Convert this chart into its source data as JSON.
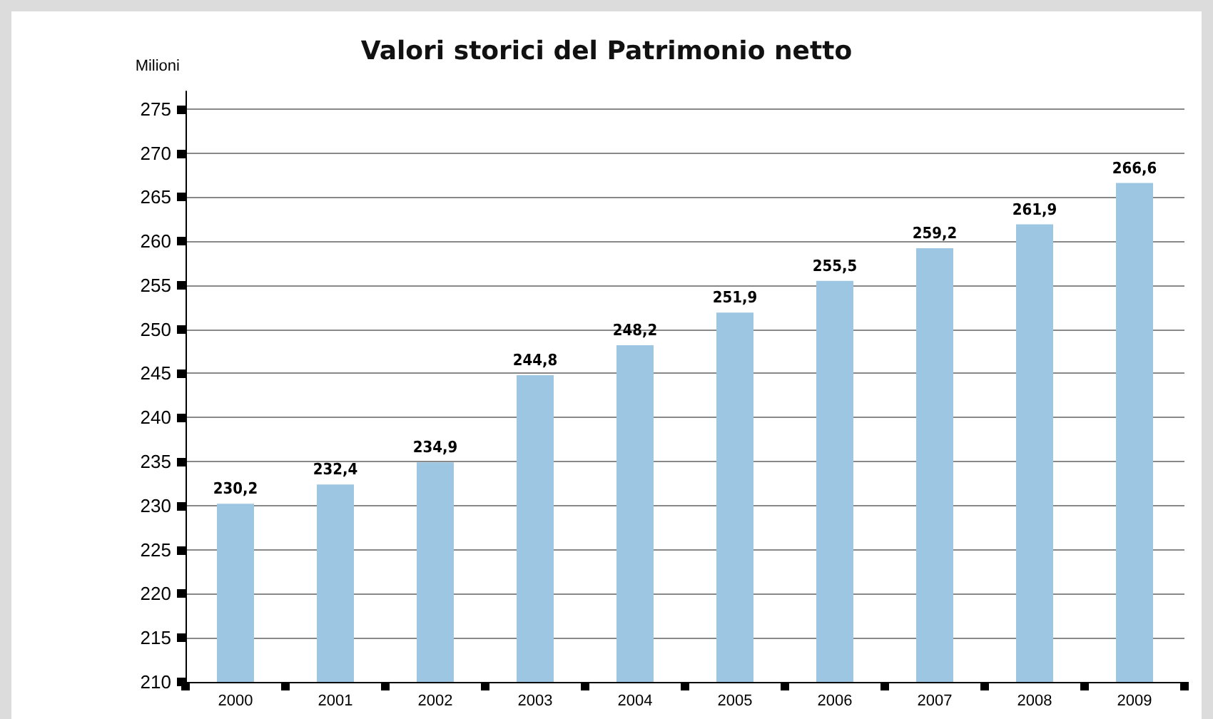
{
  "chart_data": {
    "type": "bar",
    "title": "Valori storici del Patrimonio netto",
    "ylabel": "Milioni",
    "categories": [
      "2000",
      "2001",
      "2002",
      "2003",
      "2004",
      "2005",
      "2006",
      "2007",
      "2008",
      "2009"
    ],
    "values": [
      230.2,
      232.4,
      234.9,
      244.8,
      248.2,
      251.9,
      255.5,
      259.2,
      261.9,
      266.6
    ],
    "color": "#9dc6e3",
    "ylim": [
      210,
      277
    ],
    "yticks": [
      210,
      215,
      220,
      225,
      230,
      235,
      240,
      245,
      250,
      255,
      260,
      265,
      270,
      275
    ],
    "value_labels": [
      "230,2",
      "232,4",
      "234,9",
      "244,8",
      "248,2",
      "251,9",
      "255,5",
      "259,2",
      "261,9",
      "266,6"
    ],
    "grid": "y"
  }
}
